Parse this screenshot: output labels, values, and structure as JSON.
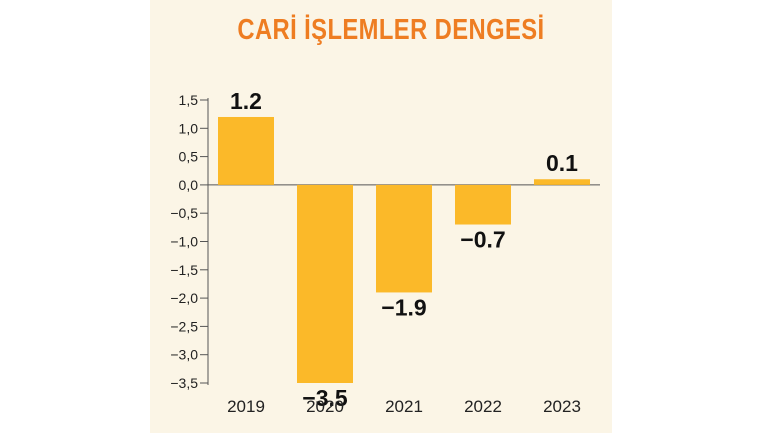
{
  "chart_data": {
    "type": "bar",
    "title": "CARİ İŞLEMLER DENGESİ",
    "categories": [
      "2019",
      "2020",
      "2021",
      "2022",
      "2023"
    ],
    "values": [
      1.2,
      -3.5,
      -1.9,
      -0.7,
      0.1
    ],
    "data_labels": [
      "1.2",
      "−3.5",
      "−1.9",
      "−0.7",
      "0.1"
    ],
    "y_ticks": [
      1.5,
      1.0,
      0.5,
      0.0,
      -0.5,
      -1.0,
      -1.5,
      -2.0,
      -2.5,
      -3.0,
      -3.5
    ],
    "y_tick_labels": [
      "1,5",
      "1,0",
      "0,5",
      "0,0",
      "−0,5",
      "−1,0",
      "−1,5",
      "−2,0",
      "−2,5",
      "−3,0",
      "−3,5"
    ],
    "ylim": [
      -3.5,
      1.5
    ],
    "xlabel": "",
    "ylabel": "",
    "grid": false,
    "colors": {
      "bar": "#fbb929",
      "title": "#ee7d22",
      "axis": "#555555",
      "background": "#fbf5e6"
    }
  }
}
